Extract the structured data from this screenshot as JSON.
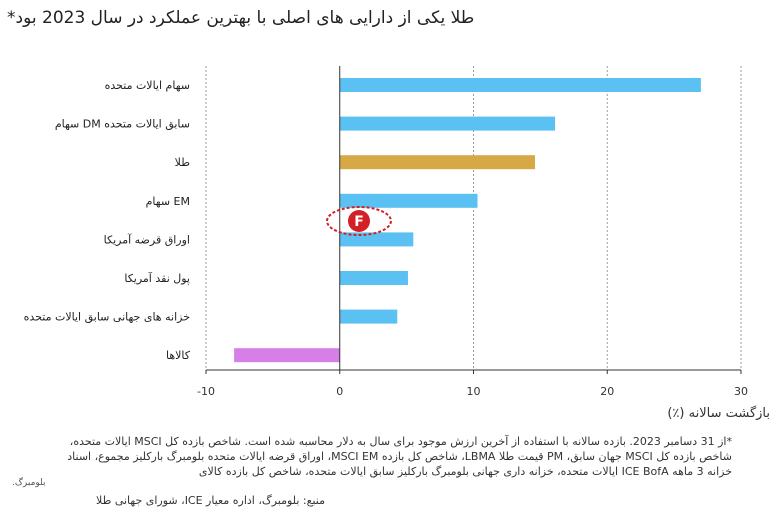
{
  "title": "طلا یکی از دارایی های اصلی با بهترین عملکرد در سال 2023 بود*",
  "chart_data": {
    "type": "bar",
    "orientation": "horizontal",
    "categories": [
      "سهام ایالات متحده",
      "سهام DM سابق ایالات متحده",
      "طلا",
      "سهام EM",
      "اوراق قرضه آمریکا",
      "پول نقد آمریکا",
      "خزانه های جهانی سابق ایالات متحده",
      "کالاها"
    ],
    "values": [
      27.0,
      16.1,
      14.6,
      10.3,
      5.5,
      5.1,
      4.3,
      -7.9
    ],
    "colors": [
      "#5BC0F2",
      "#5BC0F2",
      "#D7A946",
      "#5BC0F2",
      "#5BC0F2",
      "#5BC0F2",
      "#5BC0F2",
      "#D67FE6"
    ],
    "xlim": [
      -10,
      30
    ],
    "xticks": [
      -10,
      0,
      10,
      20,
      30
    ],
    "xlabel": "بازگشت سالانه (٪)",
    "grid": true
  },
  "footnote": "*از 31 دسامبر 2023. بازده سالانه با استفاده از آخرین ارزش موجود برای سال به دلار محاسبه شده است. شاخص بازده کل MSCI ایالات متحده، شاخص بازده کل MSCI جهان سابق، PM قیمت طلا LBMA، شاخص کل بازده MSCI EM، اوراق قرضه ایالات متحده بلومبرگ بارکلیز مجموع، اسناد خزانه 3 ماهه ICE BofA ایالات متحده، خزانه داری جهانی بلومبرگ بارکلیز سابق ایالات متحده، شاخص کل بازده کالای",
  "footnote_extra": "بلومبرگ.",
  "source": "منبع: بلومبرگ، اداره معیار ICE، شورای جهانی طلا"
}
